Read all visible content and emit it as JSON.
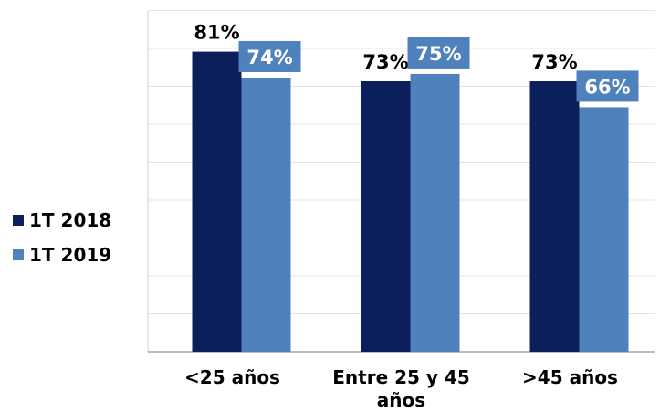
{
  "chart_data": {
    "type": "bar",
    "categories": [
      [
        "<25 años"
      ],
      [
        "Entre 25 y 45",
        "años"
      ],
      [
        ">45 años"
      ]
    ],
    "series": [
      {
        "name": "1T 2018",
        "values": [
          81,
          73,
          73
        ],
        "color": "#0b1f5c",
        "labels": [
          "81%",
          "73%",
          "73%"
        ]
      },
      {
        "name": "1T 2019",
        "values": [
          74,
          75,
          66
        ],
        "color": "#4f81bd",
        "labels": [
          "74%",
          "75%",
          "66%"
        ]
      }
    ],
    "ylim": [
      0,
      92
    ],
    "grid": true,
    "legend_position": "left"
  }
}
